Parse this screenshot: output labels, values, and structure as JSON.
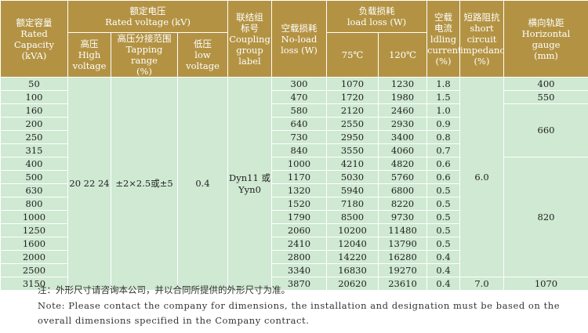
{
  "headers": {
    "capacity": [
      "额定容量",
      "Rated",
      "Capacity",
      "(kVA)"
    ],
    "rated_voltage": [
      "额定电压",
      "Rated voltage (kV)"
    ],
    "high_voltage": [
      "高压",
      "High",
      "voltage"
    ],
    "tapping_range": [
      "高压分接范围",
      "Tapping range",
      "(%)"
    ],
    "low_voltage": [
      "低压",
      "low",
      "voltage"
    ],
    "coupling": [
      "联结组",
      "标号",
      "Coupling",
      "group",
      "label"
    ],
    "no_load_loss": [
      "空载损耗",
      "No-load",
      "loss (W)"
    ],
    "load_loss": [
      "负载损耗",
      "load loss (W)"
    ],
    "load_loss_75": "75℃",
    "load_loss_120": "120℃",
    "no_load_current": [
      "空载",
      "电流",
      "ldling",
      "current",
      "(%)"
    ],
    "short_circuit": [
      "短路阻抗",
      "short",
      "circuit",
      "impedance",
      "(%)"
    ],
    "gauge": [
      "横向轨距",
      "Horizontal",
      "gauge",
      "(mm)"
    ]
  },
  "merged": {
    "high_voltage": [
      "20",
      "22",
      "24"
    ],
    "tapping_range": "±2×2.5或±5",
    "low_voltage": "0.4",
    "coupling": [
      "Dyn11",
      "或",
      "Yyn0"
    ],
    "impedance_main": "6.0",
    "impedance_last": "7.0",
    "gauge_400": "400",
    "gauge_550": "550",
    "gauge_660": "660",
    "gauge_820": "820",
    "gauge_1070": "1070"
  },
  "rows": [
    {
      "capacity": "50",
      "no_load": "300",
      "l75": "1070",
      "l120": "1230",
      "current": "1.8"
    },
    {
      "capacity": "100",
      "no_load": "470",
      "l75": "1720",
      "l120": "1980",
      "current": "1.5"
    },
    {
      "capacity": "160",
      "no_load": "580",
      "l75": "2120",
      "l120": "2460",
      "current": "1.0"
    },
    {
      "capacity": "200",
      "no_load": "640",
      "l75": "2550",
      "l120": "2930",
      "current": "0.9"
    },
    {
      "capacity": "250",
      "no_load": "730",
      "l75": "2950",
      "l120": "3400",
      "current": "0.8"
    },
    {
      "capacity": "315",
      "no_load": "840",
      "l75": "3550",
      "l120": "4060",
      "current": "0.7"
    },
    {
      "capacity": "400",
      "no_load": "1000",
      "l75": "4210",
      "l120": "4820",
      "current": "0.6"
    },
    {
      "capacity": "500",
      "no_load": "1170",
      "l75": "5030",
      "l120": "5760",
      "current": "0.6"
    },
    {
      "capacity": "630",
      "no_load": "1320",
      "l75": "5940",
      "l120": "6800",
      "current": "0.5"
    },
    {
      "capacity": "800",
      "no_load": "1520",
      "l75": "7180",
      "l120": "8220",
      "current": "0.5"
    },
    {
      "capacity": "1000",
      "no_load": "1790",
      "l75": "8500",
      "l120": "9730",
      "current": "0.5"
    },
    {
      "capacity": "1250",
      "no_load": "2060",
      "l75": "10200",
      "l120": "11480",
      "current": "0.5"
    },
    {
      "capacity": "1600",
      "no_load": "2410",
      "l75": "12040",
      "l120": "13790",
      "current": "0.5"
    },
    {
      "capacity": "2000",
      "no_load": "2800",
      "l75": "14220",
      "l120": "16280",
      "current": "0.4"
    },
    {
      "capacity": "2500",
      "no_load": "3340",
      "l75": "16830",
      "l120": "19270",
      "current": "0.4"
    },
    {
      "capacity": "3150",
      "no_load": "3870",
      "l75": "20620",
      "l120": "23610",
      "current": "0.4"
    }
  ],
  "note_cn": "注：外形尺寸请咨询本公司，并以合同所提供的外形尺寸为准。",
  "note_en": "Note: Please contact the company for dimensions, the installation and designation must be based on the overall dimensions specified in the Company contract."
}
